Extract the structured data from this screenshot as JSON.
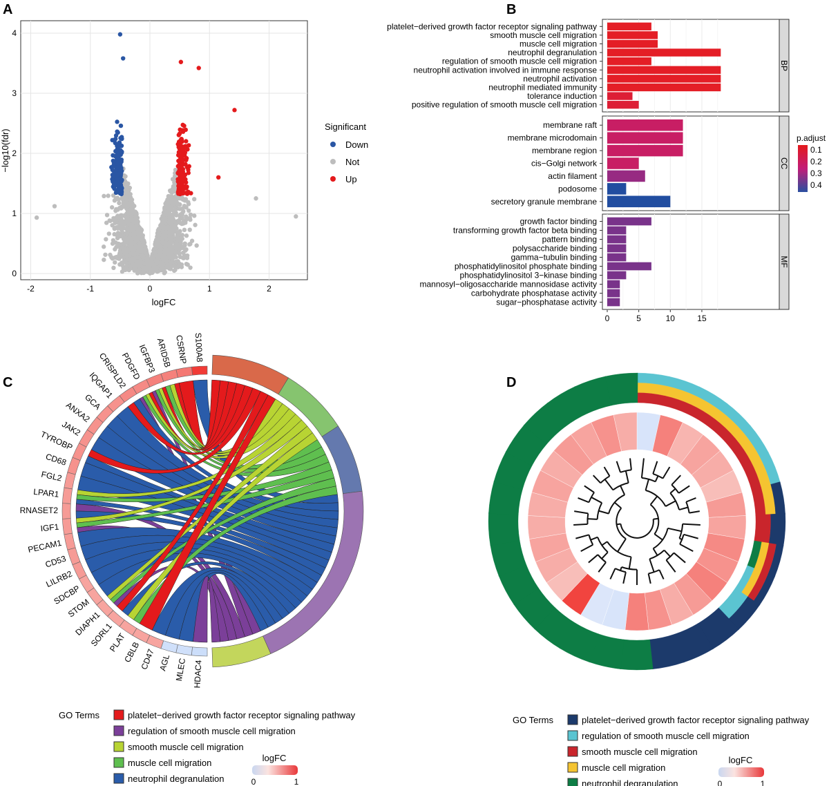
{
  "panels": {
    "a": "A",
    "b": "B",
    "c": "C",
    "d": "D"
  },
  "chart_data": [
    {
      "type": "scatter",
      "panel": "A",
      "xlabel": "logFC",
      "ylabel": "−log10(fdr)",
      "xlim": [
        -2.1,
        2.6
      ],
      "ylim": [
        -0.1,
        4.1
      ],
      "xticks": [
        "-2",
        "-1",
        "0",
        "1",
        "2"
      ],
      "yticks": [
        "0",
        "1",
        "2",
        "3",
        "4"
      ],
      "legend": {
        "title": "Significant",
        "position": "right",
        "items": [
          {
            "name": "Down",
            "color": "#2a56a4"
          },
          {
            "name": "Not",
            "color": "#bdbdbd"
          },
          {
            "name": "Up",
            "color": "#e41a1c"
          }
        ]
      },
      "notable_points": [
        {
          "x": -0.5,
          "y": 3.98,
          "group": "Down"
        },
        {
          "x": -0.45,
          "y": 3.58,
          "group": "Down"
        },
        {
          "x": 0.52,
          "y": 3.52,
          "group": "Up"
        },
        {
          "x": 0.82,
          "y": 3.42,
          "group": "Up"
        },
        {
          "x": 1.42,
          "y": 2.72,
          "group": "Up"
        },
        {
          "x": 1.15,
          "y": 1.6,
          "group": "Up"
        },
        {
          "x": 2.45,
          "y": 0.95,
          "group": "Not"
        },
        {
          "x": -1.9,
          "y": 0.93,
          "group": "Not"
        },
        {
          "x": 1.78,
          "y": 1.25,
          "group": "Not"
        },
        {
          "x": -1.6,
          "y": 1.12,
          "group": "Not"
        }
      ],
      "thresholds": {
        "logFC": 0.5,
        "fdr_log": 1.3
      }
    },
    {
      "type": "bar",
      "panel": "B",
      "orientation": "horizontal",
      "xticks": [
        "0",
        "5",
        "10",
        "15"
      ],
      "xlim": [
        0,
        19
      ],
      "legend": {
        "title": "p.adjust",
        "position": "right",
        "ticks": [
          "0.1",
          "0.2",
          "0.3",
          "0.4"
        ]
      },
      "facets": [
        {
          "name": "BP",
          "categories": [
            "platelet−derived growth factor receptor signaling pathway",
            "smooth muscle cell migration",
            "muscle cell migration",
            "neutrophil degranulation",
            "regulation of smooth muscle cell migration",
            "neutrophil activation involved in immune response",
            "neutrophil activation",
            "neutrophil mediated immunity",
            "tolerance induction",
            "positive regulation of smooth muscle cell migration"
          ],
          "values": [
            7,
            8,
            8,
            18,
            7,
            18,
            18,
            18,
            4,
            5
          ],
          "p_adjust": [
            0.1,
            0.1,
            0.1,
            0.1,
            0.1,
            0.1,
            0.1,
            0.1,
            0.13,
            0.13
          ]
        },
        {
          "name": "CC",
          "categories": [
            "membrane raft",
            "membrane microdomain",
            "membrane region",
            "cis−Golgi network",
            "actin filament",
            "podosome",
            "secretory granule membrane"
          ],
          "values": [
            12,
            12,
            12,
            5,
            6,
            3,
            10
          ],
          "p_adjust": [
            0.22,
            0.22,
            0.22,
            0.22,
            0.3,
            0.42,
            0.42
          ]
        },
        {
          "name": "MF",
          "categories": [
            "growth factor binding",
            "transforming growth factor beta binding",
            "pattern binding",
            "polysaccharide binding",
            "gamma−tubulin binding",
            "phosphatidylinositol phosphate binding",
            "phosphatidylinositol 3−kinase binding",
            "mannosyl−oligosaccharide mannosidase activity",
            "carbohydrate phosphatase activity",
            "sugar−phosphatase activity"
          ],
          "values": [
            7,
            3,
            3,
            3,
            3,
            7,
            3,
            2,
            2,
            2
          ],
          "p_adjust": [
            0.33,
            0.33,
            0.33,
            0.33,
            0.33,
            0.33,
            0.33,
            0.33,
            0.33,
            0.33
          ]
        }
      ]
    },
    {
      "type": "chord",
      "panel": "C",
      "genes": [
        "S100A8",
        "CSRNP",
        "ARID5B",
        "IGFBP3",
        "PDGFD",
        "CRISPLD2",
        "IQGAP1",
        "GCA",
        "ANXA2",
        "JAK2",
        "TYROBP",
        "CD68",
        "FGL2",
        "LPAR1",
        "RNASET2",
        "IGF1",
        "PECAM1",
        "CD53",
        "LILRB2",
        "SDCBP",
        "STOM",
        "DIAPH1",
        "SORL1",
        "PLAT",
        "CBLB",
        "CD47",
        "AGL",
        "MLEC",
        "HDAC4"
      ],
      "logFC": [
        0.95,
        0.6,
        0.55,
        0.55,
        0.5,
        0.5,
        0.45,
        0.45,
        0.45,
        0.45,
        0.45,
        0.45,
        0.4,
        0.4,
        0.4,
        0.4,
        0.4,
        0.4,
        0.4,
        0.35,
        0.35,
        0.35,
        0.35,
        0.35,
        0.35,
        0.35,
        -0.4,
        -0.4,
        -0.45
      ],
      "links": [
        [
          0,
          4
        ],
        [
          1,
          0
        ],
        [
          2,
          0
        ],
        [
          2,
          2
        ],
        [
          2,
          3
        ],
        [
          3,
          0
        ],
        [
          3,
          2
        ],
        [
          3,
          3
        ],
        [
          3,
          1
        ],
        [
          4,
          0
        ],
        [
          4,
          2
        ],
        [
          4,
          3
        ],
        [
          4,
          1
        ],
        [
          5,
          4
        ],
        [
          5,
          0
        ],
        [
          6,
          4
        ],
        [
          7,
          4
        ],
        [
          8,
          4
        ],
        [
          9,
          4
        ],
        [
          10,
          0
        ],
        [
          10,
          4
        ],
        [
          11,
          4
        ],
        [
          12,
          4
        ],
        [
          13,
          2
        ],
        [
          13,
          3
        ],
        [
          13,
          4
        ],
        [
          14,
          1
        ],
        [
          14,
          4
        ],
        [
          15,
          2
        ],
        [
          15,
          3
        ],
        [
          15,
          1
        ],
        [
          16,
          4
        ],
        [
          17,
          4
        ],
        [
          18,
          4
        ],
        [
          19,
          4
        ],
        [
          20,
          4
        ],
        [
          21,
          2
        ],
        [
          21,
          3
        ],
        [
          21,
          1
        ],
        [
          22,
          0
        ],
        [
          22,
          4
        ],
        [
          23,
          2
        ],
        [
          23,
          3
        ],
        [
          24,
          0
        ],
        [
          25,
          4
        ],
        [
          26,
          4
        ],
        [
          27,
          4
        ],
        [
          28,
          1
        ]
      ],
      "legend": {
        "title": "GO Terms",
        "items": [
          "platelet−derived growth factor receptor signaling pathway",
          "regulation of smooth muscle cell migration",
          "smooth muscle cell migration",
          "muscle cell migration",
          "neutrophil degranulation"
        ],
        "colors": [
          "#e41a1c",
          "#7b3f99",
          "#b8d433",
          "#5fbf4f",
          "#2a5caa"
        ],
        "arc_colors": [
          "#d9694a",
          "#c3d65c",
          "#86c46f",
          "#6479ae",
          "#9c74b2"
        ],
        "order": [
          0,
          2,
          3,
          4,
          1
        ]
      },
      "scale": {
        "title": "logFC",
        "min": "0",
        "max": "1"
      }
    },
    {
      "type": "circular-heatmap",
      "panel": "D",
      "logFC": [
        -0.3,
        0.55,
        0.25,
        0.35,
        0.3,
        0.2,
        0.4,
        0.35,
        0.5,
        0.45,
        0.55,
        0.4,
        0.3,
        0.45,
        0.55,
        -0.3,
        -0.25,
        0.9,
        0.2,
        0.3,
        0.35,
        0.3,
        0.3,
        0.35,
        0.3,
        0.4,
        0.35,
        0.45,
        0.3
      ],
      "term_membership": [
        [
          1,
          3,
          2
        ],
        [
          1,
          3,
          2
        ],
        [
          1,
          3,
          2
        ],
        [
          1,
          3,
          2
        ],
        [
          1,
          3,
          2
        ],
        [
          1,
          3,
          2
        ],
        [
          0,
          3,
          2
        ],
        [
          0,
          2
        ],
        [
          0,
          2,
          3,
          4
        ],
        [
          0,
          2,
          3,
          1
        ],
        [
          0,
          1
        ],
        [
          0
        ],
        [
          0
        ],
        [
          0
        ],
        [
          4
        ],
        [
          4
        ],
        [
          4
        ],
        [
          4
        ],
        [
          4
        ],
        [
          4
        ],
        [
          4
        ],
        [
          4
        ],
        [
          4
        ],
        [
          4
        ],
        [
          4
        ],
        [
          4
        ],
        [
          4
        ],
        [
          4
        ],
        [
          4
        ]
      ],
      "legend": {
        "title": "GO Terms",
        "items": [
          "platelet−derived growth factor receptor signaling pathway",
          "regulation of smooth muscle cell migration",
          "smooth muscle cell migration",
          "muscle cell migration",
          "neutrophil degranulation"
        ],
        "colors": [
          "#1c3a6b",
          "#5bc4d1",
          "#c9252c",
          "#f5c431",
          "#0d7d45"
        ]
      },
      "scale": {
        "title": "logFC",
        "min": "0",
        "max": "1"
      }
    }
  ]
}
